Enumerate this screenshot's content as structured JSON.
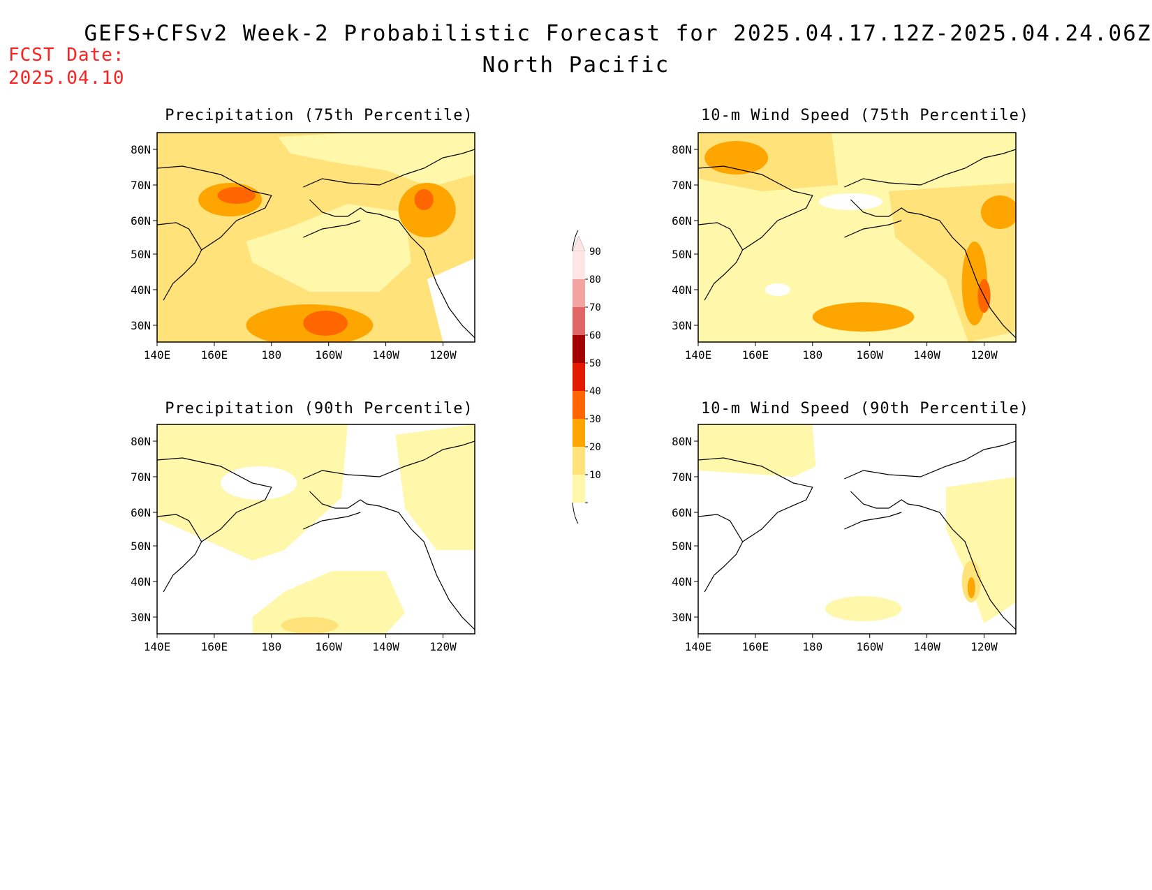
{
  "header": {
    "title": "GEFS+CFSv2 Week-2 Probabilistic Forecast for 2025.04.17.12Z-2025.04.24.06Z",
    "subtitle": "North Pacific",
    "fcst_date_label": "FCST Date:",
    "fcst_date_value": "2025.04.10"
  },
  "colors": {
    "fcst_date": "#ff2020",
    "levels": [
      "#ffffff",
      "#fff7aa",
      "#ffe27a",
      "#ffa500",
      "#ff6600",
      "#e31a00",
      "#a50000",
      "#e06666",
      "#f4a3a3",
      "#ffe6e6"
    ],
    "coast": "#000000"
  },
  "map_axes": {
    "lon_ticks": [
      "140E",
      "160E",
      "180",
      "160W",
      "140W",
      "120W"
    ],
    "lat_ticks": [
      "80N",
      "70N",
      "60N",
      "50N",
      "40N",
      "30N"
    ]
  },
  "panels": [
    {
      "id": "precip75",
      "title": "Precipitation (75th Percentile)"
    },
    {
      "id": "wind75",
      "title": "10-m Wind Speed (75th Percentile)"
    },
    {
      "id": "precip90",
      "title": "Precipitation (90th Percentile)"
    },
    {
      "id": "wind90",
      "title": "10-m Wind Speed (90th Percentile)"
    }
  ],
  "colorbar": {
    "labels": [
      "90",
      "80",
      "70",
      "60",
      "50",
      "40",
      "30",
      "20",
      "10"
    ]
  }
}
